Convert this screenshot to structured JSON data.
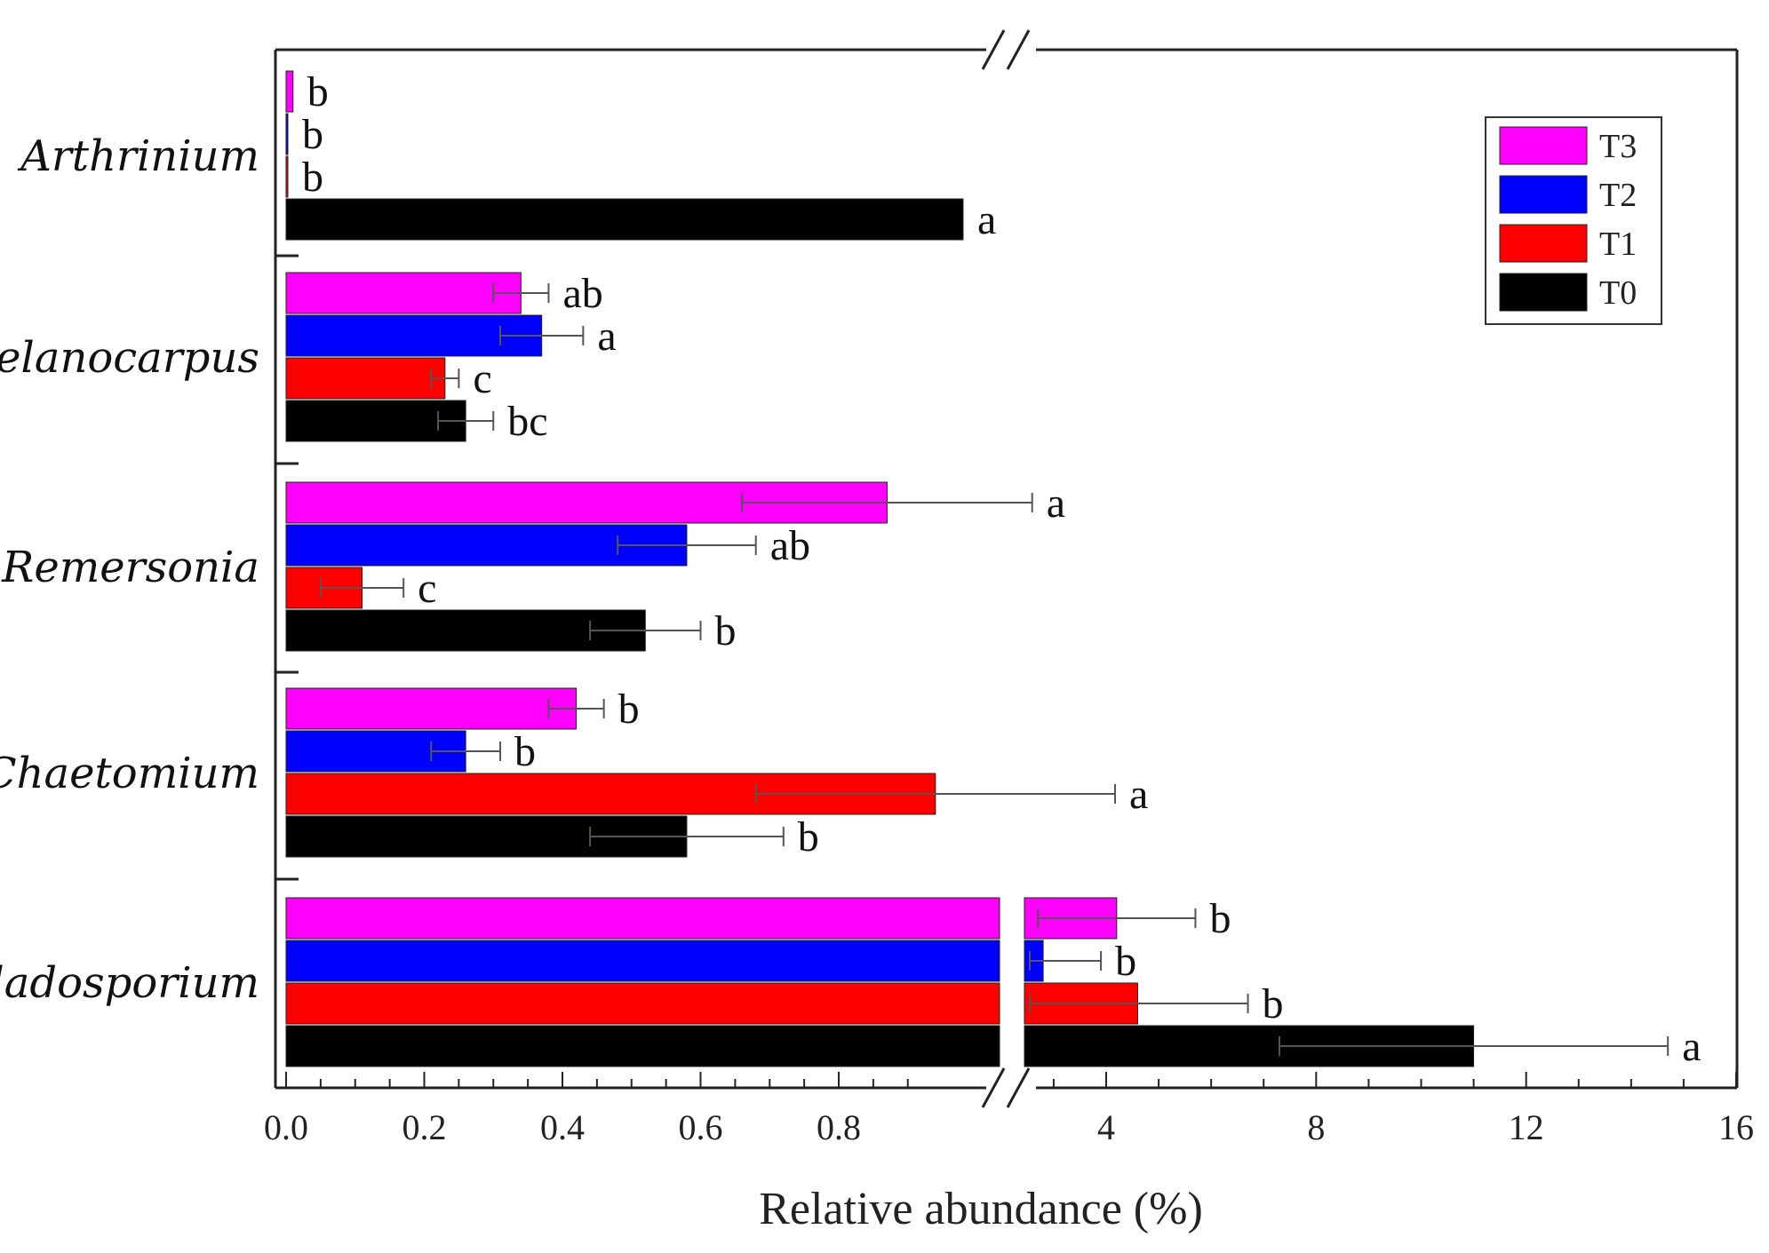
{
  "chart_data": {
    "type": "bar",
    "orientation": "horizontal",
    "xlabel": "Relative abundance (%)",
    "ylabel": "",
    "axis_break": {
      "left_range": [
        0,
        1.0
      ],
      "right_range": [
        2.0,
        16
      ]
    },
    "x_ticks_left": [
      0.0,
      0.2,
      0.4,
      0.6,
      0.8
    ],
    "x_tick_labels_left": [
      "0.0",
      "0.2",
      "0.4",
      "0.6",
      "0.8"
    ],
    "x_ticks_right": [
      4,
      8,
      12,
      16
    ],
    "x_tick_labels_right": [
      "4",
      "8",
      "12",
      "16"
    ],
    "categories": [
      "Arthrinium",
      "Melanocarpus",
      "Remersonia",
      "Chaetomium",
      "Cladosporium"
    ],
    "series": [
      {
        "name": "T3",
        "color": "#ff00ff",
        "values": [
          0.01,
          0.34,
          0.87,
          0.42,
          4.2
        ],
        "errors": [
          0.0,
          0.04,
          0.21,
          0.04,
          1.5
        ],
        "letters": [
          "b",
          "ab",
          "a",
          "b",
          "b"
        ]
      },
      {
        "name": "T2",
        "color": "#0000ff",
        "values": [
          0.001,
          0.37,
          0.58,
          0.26,
          2.8
        ],
        "errors": [
          0.0,
          0.06,
          0.1,
          0.05,
          1.1
        ],
        "letters": [
          "b",
          "a",
          "ab",
          "b",
          "b"
        ]
      },
      {
        "name": "T1",
        "color": "#ff0000",
        "values": [
          0.001,
          0.23,
          0.11,
          0.94,
          4.6
        ],
        "errors": [
          0.0,
          0.02,
          0.06,
          0.26,
          2.1
        ],
        "letters": [
          "b",
          "c",
          "c",
          "a",
          "b"
        ]
      },
      {
        "name": "T0",
        "color": "#000000",
        "values": [
          0.98,
          0.26,
          0.52,
          0.58,
          11.0
        ],
        "errors": [
          0.0,
          0.04,
          0.08,
          0.14,
          3.7
        ],
        "letters": [
          "a",
          "bc",
          "b",
          "b",
          "a"
        ]
      }
    ],
    "legend": {
      "position": "top-right",
      "entries": [
        "T3",
        "T2",
        "T1",
        "T0"
      ]
    }
  }
}
